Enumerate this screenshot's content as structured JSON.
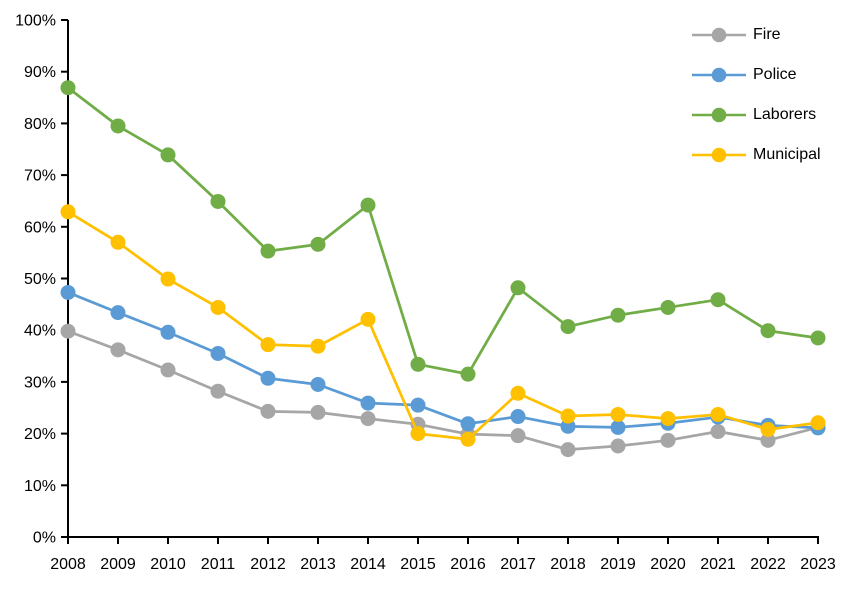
{
  "chart_data": {
    "type": "line",
    "title": "",
    "xlabel": "",
    "ylabel": "",
    "x": [
      "2008",
      "2009",
      "2010",
      "2011",
      "2012",
      "2013",
      "2014",
      "2015",
      "2016",
      "2017",
      "2018",
      "2019",
      "2020",
      "2021",
      "2022",
      "2023"
    ],
    "y_tick_labels": [
      "0%",
      "10%",
      "20%",
      "30%",
      "40%",
      "50%",
      "60%",
      "70%",
      "80%",
      "90%",
      "100%"
    ],
    "ylim": [
      0,
      100
    ],
    "grid": false,
    "legend_position": "top-right",
    "axis_color": "#000000",
    "text_color": "#000000",
    "background_color": "#FFFFFF",
    "series": [
      {
        "name": "Fire",
        "color": "#A6A6A6",
        "values": [
          39.8,
          36.2,
          32.3,
          28.2,
          24.3,
          24.1,
          22.9,
          21.8,
          19.9,
          19.6,
          16.9,
          17.6,
          18.7,
          20.4,
          18.7,
          21.2
        ]
      },
      {
        "name": "Police",
        "color": "#5B9BD5",
        "values": [
          47.3,
          43.4,
          39.6,
          35.5,
          30.7,
          29.5,
          25.9,
          25.5,
          21.9,
          23.3,
          21.4,
          21.2,
          22.0,
          23.2,
          21.6,
          21.1
        ]
      },
      {
        "name": "Laborers",
        "color": "#70AD47",
        "values": [
          86.9,
          79.5,
          73.9,
          64.9,
          55.3,
          56.6,
          64.2,
          33.4,
          31.5,
          48.2,
          40.7,
          42.9,
          44.4,
          45.9,
          39.9,
          38.5
        ]
      },
      {
        "name": "Municipal",
        "color": "#FFC000",
        "values": [
          62.9,
          57.0,
          49.9,
          44.4,
          37.2,
          36.9,
          42.1,
          20.0,
          18.9,
          27.8,
          23.4,
          23.7,
          22.9,
          23.7,
          20.8,
          22.1
        ]
      }
    ]
  }
}
